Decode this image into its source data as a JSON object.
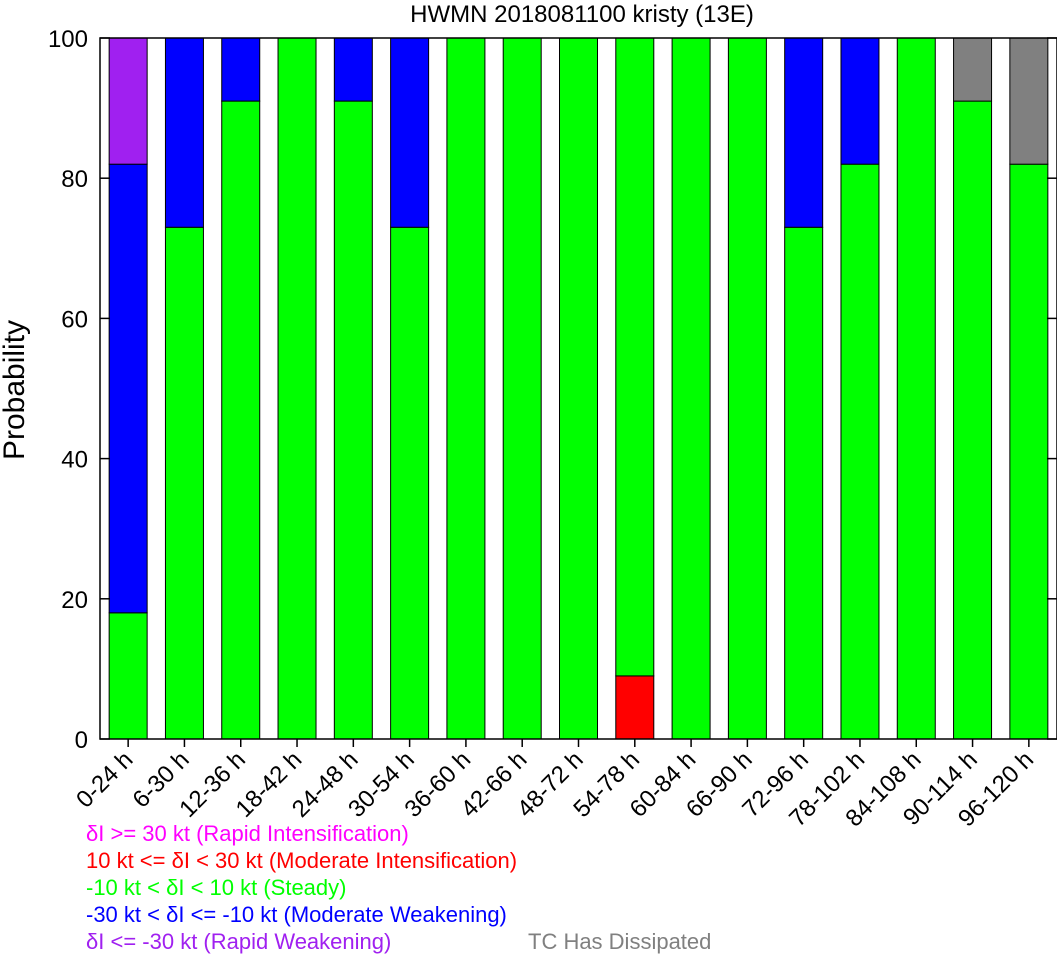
{
  "chart_data": {
    "type": "bar",
    "stacked": true,
    "title": "HWMN 2018081100 kristy (13E)",
    "xlabel": "",
    "ylabel": "Probability",
    "ylim": [
      0,
      100
    ],
    "yticks": [
      0,
      20,
      40,
      60,
      80,
      100
    ],
    "grid": false,
    "categories": [
      "0-24 h",
      "6-30 h",
      "12-36 h",
      "18-42 h",
      "24-48 h",
      "30-54 h",
      "36-60 h",
      "42-66 h",
      "48-72 h",
      "54-78 h",
      "60-84 h",
      "66-90 h",
      "72-96 h",
      "78-102 h",
      "84-108 h",
      "90-114 h",
      "96-120 h"
    ],
    "series": [
      {
        "key": "mod_int",
        "color": "#ff0000",
        "values": [
          0,
          0,
          0,
          0,
          0,
          0,
          0,
          0,
          0,
          9,
          0,
          0,
          0,
          0,
          0,
          0,
          0
        ]
      },
      {
        "key": "steady",
        "color": "#00ff00",
        "values": [
          18,
          73,
          91,
          100,
          91,
          73,
          100,
          100,
          100,
          91,
          100,
          100,
          73,
          82,
          100,
          91,
          82
        ]
      },
      {
        "key": "mod_weak",
        "color": "#0000ff",
        "values": [
          64,
          27,
          9,
          0,
          9,
          27,
          0,
          0,
          0,
          0,
          0,
          0,
          27,
          18,
          0,
          0,
          0
        ]
      },
      {
        "key": "rapid_weak",
        "color": "#a020f0",
        "values": [
          18,
          0,
          0,
          0,
          0,
          0,
          0,
          0,
          0,
          0,
          0,
          0,
          0,
          0,
          0,
          0,
          0
        ]
      },
      {
        "key": "dissipated",
        "color": "#808080",
        "values": [
          0,
          0,
          0,
          0,
          0,
          0,
          0,
          0,
          0,
          0,
          0,
          0,
          0,
          0,
          0,
          9,
          18
        ]
      }
    ],
    "legend": {
      "placement": "bottom-left",
      "entries": [
        {
          "text": "δI >= 30 kt (Rapid Intensification)",
          "color": "#ff00ff"
        },
        {
          "text": "10 kt <= δI < 30 kt (Moderate Intensification)",
          "color": "#ff0000"
        },
        {
          "text": "-10 kt < δI < 10 kt (Steady)",
          "color": "#00ff00"
        },
        {
          "text": "-30 kt < δI <= -10 kt (Moderate Weakening)",
          "color": "#0000ff"
        },
        {
          "text": "δI <= -30 kt (Rapid Weakening)",
          "color": "#a020f0"
        },
        {
          "text": "TC Has Dissipated",
          "color": "#808080"
        }
      ]
    }
  }
}
